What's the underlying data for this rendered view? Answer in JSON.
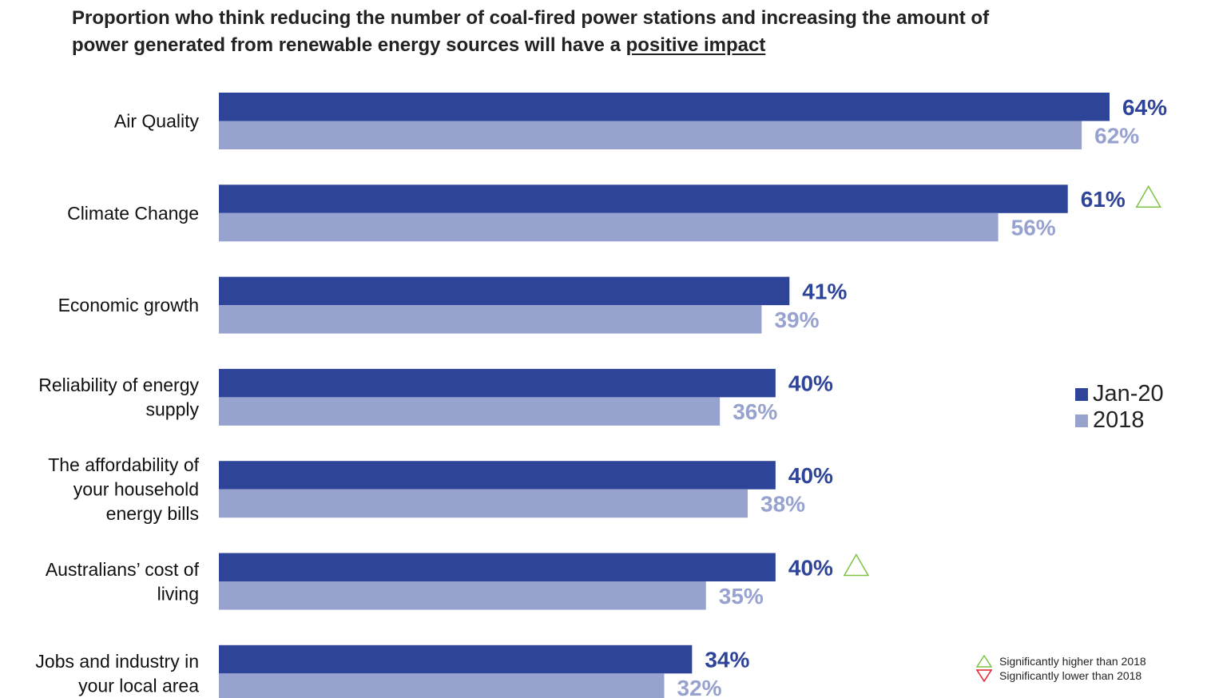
{
  "title": {
    "line1": "Proportion who think reducing the number of coal-fired power stations and increasing the amount of",
    "line2_prefix": "power generated from renewable energy sources will have a ",
    "line2_underlined": "positive impact"
  },
  "colors": {
    "jan20": "#2e4499",
    "y2018": "#97a2cf",
    "sig_higher": "#7dc242",
    "sig_lower": "#e8202a"
  },
  "legend": {
    "jan20": "Jan-20",
    "y2018": "2018"
  },
  "significance": {
    "higher": "Significantly higher than 2018",
    "lower": "Significantly lower than 2018"
  },
  "chart_data": {
    "type": "bar",
    "orientation": "horizontal",
    "categories": [
      [
        "Air Quality"
      ],
      [
        "Climate Change"
      ],
      [
        "Economic growth"
      ],
      [
        "Reliability of energy",
        "supply"
      ],
      [
        "The affordability of",
        "your household",
        "energy bills"
      ],
      [
        "Australians’ cost of",
        "living"
      ],
      [
        "Jobs and industry in",
        "your local area"
      ]
    ],
    "series": [
      {
        "name": "Jan-20",
        "values": [
          64,
          61,
          41,
          40,
          40,
          40,
          34
        ]
      },
      {
        "name": "2018",
        "values": [
          62,
          56,
          39,
          36,
          38,
          35,
          32
        ]
      }
    ],
    "value_labels": {
      "Jan-20": [
        "64%",
        "61%",
        "41%",
        "40%",
        "40%",
        "40%",
        "34%"
      ],
      "2018": [
        "62%",
        "56%",
        "39%",
        "36%",
        "38%",
        "35%",
        "32%"
      ]
    },
    "significantly_higher": [
      false,
      true,
      false,
      false,
      false,
      true,
      false
    ],
    "xlim": [
      0,
      64
    ],
    "legend_position": "right"
  }
}
